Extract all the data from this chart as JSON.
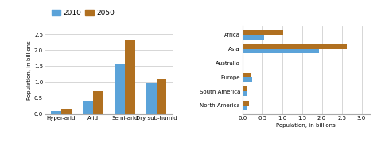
{
  "left": {
    "categories": [
      "Hyper-arid",
      "Arid",
      "Semi-arid",
      "Dry sub-humid"
    ],
    "values_2010": [
      0.1,
      0.42,
      1.55,
      0.95
    ],
    "values_2050": [
      0.13,
      0.72,
      2.3,
      1.1
    ],
    "ylabel": "Population, in billions",
    "ylim": [
      0,
      2.75
    ],
    "yticks": [
      0.0,
      0.5,
      1.0,
      1.5,
      2.0,
      2.5
    ]
  },
  "right": {
    "categories": [
      "Africa",
      "Asia",
      "Australia",
      "Europe",
      "South America",
      "North America"
    ],
    "values_2010": [
      0.55,
      1.92,
      0.02,
      0.24,
      0.1,
      0.13
    ],
    "values_2050": [
      1.02,
      2.62,
      0.02,
      0.22,
      0.12,
      0.17
    ],
    "xlabel": "Population, in billions",
    "xlim": [
      0,
      3.2
    ],
    "xticks": [
      0.0,
      0.5,
      1.0,
      1.5,
      2.0,
      2.5,
      3.0
    ]
  },
  "color_2010": "#5BA3D9",
  "color_2050": "#B07020",
  "legend_labels": [
    "2010",
    "2050"
  ],
  "background": "#ffffff",
  "bar_width": 0.32,
  "fontsize": 6.5
}
